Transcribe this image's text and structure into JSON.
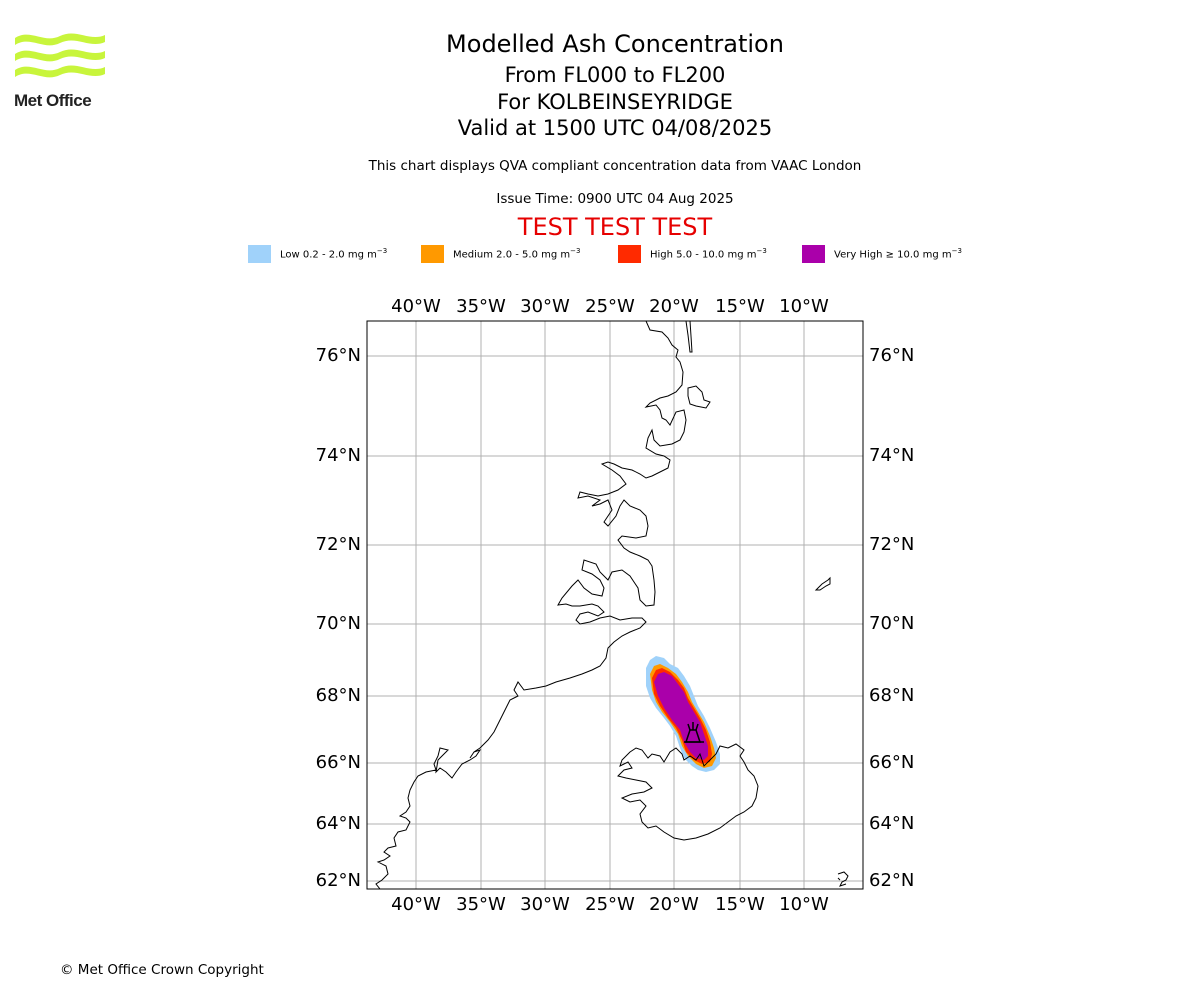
{
  "brand": {
    "name": "Met Office",
    "logo_color": "#c8f53c"
  },
  "header": {
    "title": "Modelled Ash Concentration",
    "levels": "From FL000 to FL200",
    "location": "For KOLBEINSEYRIDGE",
    "valid": "Valid at 1500 UTC 04/08/2025",
    "description": "This chart displays QVA compliant concentration data from VAAC London",
    "issue_time": "Issue Time: 0900 UTC 04 Aug 2025",
    "test_banner": "TEST TEST TEST",
    "test_color": "#e60000"
  },
  "legend": [
    {
      "label": "Low 0.2 - 2.0 mg m",
      "unit_exp": "−3",
      "color": "#a0d2fa"
    },
    {
      "label": "Medium 2.0 - 5.0 mg m",
      "unit_exp": "−3",
      "color": "#ff9900"
    },
    {
      "label": "High 5.0 - 10.0 mg m",
      "unit_exp": "−3",
      "color": "#ff2a00"
    },
    {
      "label": "Very High  ≥  10.0 mg m",
      "unit_exp": "−3",
      "color": "#aa00aa"
    }
  ],
  "map": {
    "lon_ticks": [
      "40°W",
      "35°W",
      "30°W",
      "25°W",
      "20°W",
      "15°W",
      "10°W"
    ],
    "lat_ticks": [
      "76°N",
      "74°N",
      "72°N",
      "70°N",
      "68°N",
      "66°N",
      "64°N",
      "62°N"
    ],
    "volcano_icon": "volcano-icon"
  },
  "footer": {
    "copyright": "© Met Office Crown Copyright"
  }
}
